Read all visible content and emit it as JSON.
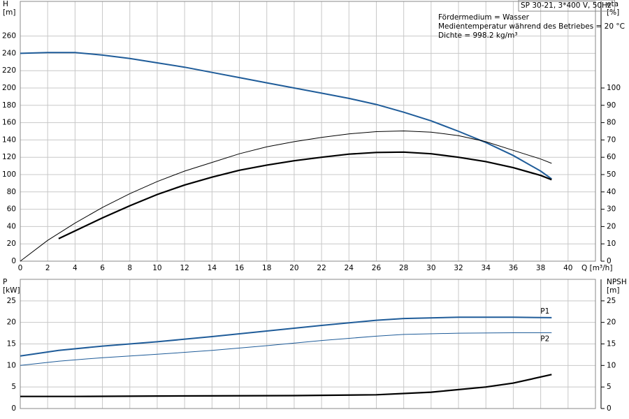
{
  "chart_data": [
    {
      "type": "line",
      "title": "SP 30-21, 3*400 V, 50Hz",
      "annotations": [
        "Fördermedium = Wasser",
        "Medientemperatur während des Betriebes = 20 °C",
        "Dichte = 998.2 kg/m³"
      ],
      "ylabel": [
        "H",
        "[m]"
      ],
      "y2label": [
        "eta",
        "[%]"
      ],
      "xlabel": "Q [m³/h]",
      "xlim": [
        0,
        42
      ],
      "xticks": [
        0,
        2,
        4,
        6,
        8,
        10,
        12,
        14,
        16,
        18,
        20,
        22,
        24,
        26,
        28,
        30,
        32,
        34,
        36,
        38,
        40
      ],
      "ylim": [
        0,
        300
      ],
      "yticks": [
        0,
        20,
        40,
        60,
        80,
        100,
        120,
        140,
        160,
        180,
        200,
        220,
        240,
        260
      ],
      "y2lim": [
        0,
        150
      ],
      "y2ticks": [
        0,
        10,
        20,
        30,
        40,
        50,
        60,
        70,
        80,
        90,
        100
      ],
      "grid": true,
      "series": [
        {
          "color": "#1f5c99",
          "line_width": 2,
          "x": [
            0,
            2,
            4,
            6,
            8,
            10,
            12,
            14,
            16,
            18,
            20,
            22,
            24,
            26,
            28,
            30,
            32,
            34,
            36,
            38,
            38.8
          ],
          "values": [
            240,
            241,
            241,
            238,
            234,
            229,
            224,
            218,
            212,
            206,
            200,
            194,
            188,
            181,
            172,
            162,
            150,
            137,
            122,
            104,
            95
          ]
        },
        {
          "color": "#000000",
          "line_width": 1,
          "axis": "y2",
          "x": [
            0,
            2,
            4,
            6,
            8,
            10,
            12,
            14,
            16,
            18,
            20,
            22,
            24,
            26,
            28,
            30,
            32,
            34,
            36,
            38,
            38.8
          ],
          "values": [
            0,
            12,
            22,
            31,
            39,
            46,
            52,
            57,
            62,
            66,
            69,
            71.5,
            73.5,
            74.8,
            75.2,
            74.5,
            72.5,
            69,
            64,
            59,
            56.5
          ]
        },
        {
          "color": "#000000",
          "line_width": 2.2,
          "axis": "y2",
          "x": [
            2.8,
            4,
            6,
            8,
            10,
            12,
            14,
            16,
            18,
            20,
            22,
            24,
            26,
            28,
            30,
            32,
            34,
            36,
            38,
            38.8
          ],
          "values": [
            13,
            17.5,
            25,
            32,
            38.5,
            44,
            48.5,
            52.5,
            55.5,
            58,
            60,
            61.8,
            62.8,
            63,
            62,
            60,
            57.5,
            54,
            49.5,
            47
          ]
        }
      ]
    },
    {
      "type": "line",
      "ylabel": [
        "P",
        "[kW]"
      ],
      "y2label": [
        "NPSH",
        "[m]"
      ],
      "xlim": [
        0,
        42
      ],
      "ylim": [
        0,
        30
      ],
      "yticks": [
        0,
        5,
        10,
        15,
        20,
        25
      ],
      "y2lim": [
        0,
        30
      ],
      "y2ticks": [
        0,
        5,
        10,
        15,
        20,
        25
      ],
      "grid": true,
      "series": [
        {
          "name": "P1",
          "color": "#1f5c99",
          "line_width": 2,
          "x": [
            0,
            2.8,
            6,
            10,
            14,
            18,
            22,
            26,
            28,
            32,
            36,
            38.8
          ],
          "values": [
            12.2,
            13.5,
            14.5,
            15.5,
            16.7,
            18,
            19.3,
            20.5,
            20.9,
            21.2,
            21.2,
            21.1
          ]
        },
        {
          "name": "P2",
          "color": "#1f5c99",
          "line_width": 1,
          "x": [
            0,
            2.8,
            6,
            10,
            14,
            18,
            22,
            26,
            28,
            32,
            36,
            38.8
          ],
          "values": [
            10,
            11,
            11.8,
            12.6,
            13.5,
            14.6,
            15.8,
            16.8,
            17.2,
            17.5,
            17.6,
            17.6
          ]
        },
        {
          "color": "#000000",
          "line_width": 2.2,
          "axis": "y2",
          "x": [
            0,
            4,
            10,
            20,
            26,
            30,
            34,
            36,
            38.8
          ],
          "values": [
            2.8,
            2.8,
            2.9,
            3.0,
            3.2,
            3.8,
            5.0,
            5.9,
            7.9
          ]
        }
      ]
    }
  ]
}
